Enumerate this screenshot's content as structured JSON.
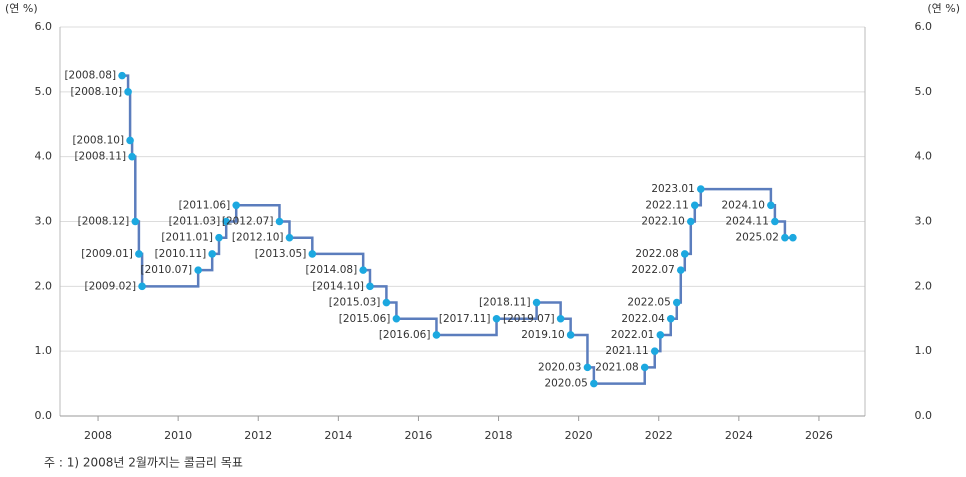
{
  "chart_data": {
    "type": "step",
    "y_unit_label": "(연 %)",
    "note": "주 : 1) 2008년 2월까지는 콜금리 목표",
    "x": [
      2008.6,
      2008.75,
      2008.8,
      2008.85,
      2008.93,
      2009.02,
      2009.1,
      2010.5,
      2010.85,
      2011.02,
      2011.2,
      2011.45,
      2012.53,
      2012.78,
      2013.35,
      2014.62,
      2014.79,
      2015.2,
      2015.45,
      2016.45,
      2017.95,
      2018.95,
      2019.55,
      2019.8,
      2020.22,
      2020.38,
      2021.65,
      2021.9,
      2022.04,
      2022.3,
      2022.45,
      2022.55,
      2022.65,
      2022.8,
      2022.9,
      2023.05,
      2024.8,
      2024.9,
      2025.15,
      2025.35
    ],
    "values": [
      5.25,
      5.0,
      4.25,
      4.0,
      3.0,
      2.5,
      2.0,
      2.25,
      2.5,
      2.75,
      3.0,
      3.25,
      3.0,
      2.75,
      2.5,
      2.25,
      2.0,
      1.75,
      1.5,
      1.25,
      1.5,
      1.75,
      1.5,
      1.25,
      0.75,
      0.5,
      0.75,
      1.0,
      1.25,
      1.5,
      1.75,
      2.25,
      2.5,
      3.0,
      3.25,
      3.5,
      3.25,
      3.0,
      2.75,
      2.75
    ],
    "point_labels": [
      "[2008.08]",
      "[2008.10]",
      "[2008.10]",
      "[2008.11]",
      "[2008.12]",
      "[2009.01]",
      "[2009.02]",
      "[2010.07]",
      "[2010.11]",
      "[2011.01]",
      "[2011.03]",
      "[2011.06]",
      "[2012.07]",
      "[2012.10]",
      "[2013.05]",
      "[2014.08]",
      "[2014.10]",
      "[2015.03]",
      "[2015.06]",
      "[2016.06]",
      "[2017.11]",
      "[2018.11]",
      "[2019.07]",
      "2019.10",
      "2020.03",
      "2020.05",
      "2021.08",
      "2021.11",
      "2022.01",
      "2022.04",
      "2022.05",
      "2022.07",
      "2022.08",
      "2022.10",
      "2022.11",
      "2023.01",
      "2024.10",
      "2024.11",
      "2025.02",
      null
    ],
    "line_color": "#5b7dbd",
    "point_color": "#1ca8e0",
    "xlim": [
      2007.05,
      2027.15
    ],
    "xticks": [
      2008,
      2010,
      2012,
      2014,
      2016,
      2018,
      2020,
      2022,
      2024,
      2026
    ],
    "ylim": [
      0,
      6
    ],
    "yticks": [
      {
        "value": 0,
        "label": "0.0"
      },
      {
        "value": 1,
        "label": "1.0"
      },
      {
        "value": 2,
        "label": "2.0"
      },
      {
        "value": 3,
        "label": "3.0"
      },
      {
        "value": 4,
        "label": "4.0"
      },
      {
        "value": 5,
        "label": "5.0"
      },
      {
        "value": 6,
        "label": "6.0"
      }
    ],
    "grid": true
  }
}
